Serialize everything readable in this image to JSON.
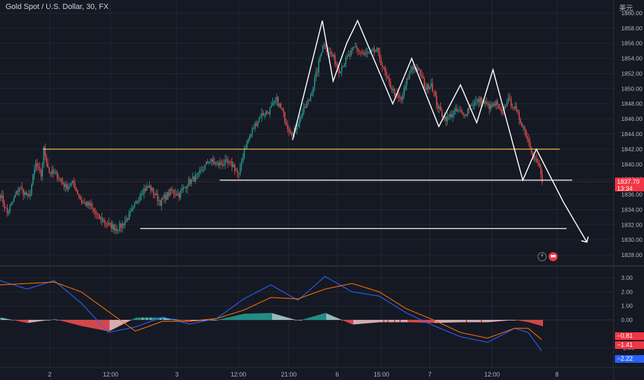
{
  "header": {
    "title": "Gold Spot / U.S. Dollar, 30, FX"
  },
  "currency_label": "美元",
  "icons": {
    "lightning": "lightning-icon",
    "flag": "us-flag-icon"
  },
  "colors": {
    "background": "#151924",
    "up": "#26a69a",
    "down": "#ef5350",
    "price_tag": "#f23645",
    "macd_line": "#2962ff",
    "signal_line": "#ff6d00",
    "support": "#ffffff",
    "resistance": "#f5c542"
  },
  "tags": {
    "price": "1837.70",
    "countdown": "13:34",
    "macd": "−0.81",
    "signal": "−1.41",
    "line": "−2.22"
  },
  "chart_data": [
    {
      "type": "candlestick",
      "interval": "30",
      "y_ticks": [
        "1828.00",
        "1830.00",
        "1832.00",
        "1834.00",
        "1836.00",
        "1838.00",
        "1840.00",
        "1842.00",
        "1844.00",
        "1846.00",
        "1848.00",
        "1850.00",
        "1852.00",
        "1854.00",
        "1856.00",
        "1858.00",
        "1860.00"
      ],
      "x_ticks": [
        "2",
        "12:00",
        "3",
        "12:00",
        "21:00",
        "6",
        "15:00",
        "7",
        "12:00",
        "8"
      ],
      "ylim": [
        1827,
        1861
      ],
      "waypoints": [
        [
          0,
          1836.0
        ],
        [
          5,
          1833.5
        ],
        [
          14,
          1837.0
        ],
        [
          21,
          1835.5
        ],
        [
          26,
          1840.0
        ],
        [
          30,
          1838.5
        ],
        [
          32,
          1842.0
        ],
        [
          36,
          1839.0
        ],
        [
          42,
          1838.5
        ],
        [
          48,
          1837.0
        ],
        [
          54,
          1837.5
        ],
        [
          60,
          1835.0
        ],
        [
          66,
          1834.5
        ],
        [
          72,
          1833.0
        ],
        [
          80,
          1832.0
        ],
        [
          86,
          1831.5
        ],
        [
          90,
          1832.0
        ],
        [
          98,
          1834.0
        ],
        [
          104,
          1836.5
        ],
        [
          110,
          1837.0
        ],
        [
          118,
          1835.0
        ],
        [
          126,
          1836.5
        ],
        [
          132,
          1836.0
        ],
        [
          138,
          1837.5
        ],
        [
          146,
          1838.5
        ],
        [
          154,
          1840.5
        ],
        [
          160,
          1840.0
        ],
        [
          166,
          1840.2
        ],
        [
          172,
          1839.8
        ],
        [
          176,
          1838.5
        ],
        [
          180,
          1842.0
        ],
        [
          186,
          1844.5
        ],
        [
          192,
          1846.5
        ],
        [
          198,
          1847.0
        ],
        [
          204,
          1848.5
        ],
        [
          208,
          1847.0
        ],
        [
          212,
          1845.0
        ],
        [
          216,
          1844.0
        ],
        [
          222,
          1846.5
        ],
        [
          228,
          1848.5
        ],
        [
          234,
          1852.5
        ],
        [
          238,
          1856.0
        ],
        [
          242,
          1855.0
        ],
        [
          246,
          1854.0
        ],
        [
          250,
          1852.5
        ],
        [
          256,
          1854.0
        ],
        [
          262,
          1855.5
        ],
        [
          268,
          1854.5
        ],
        [
          274,
          1854.8
        ],
        [
          278,
          1855.0
        ],
        [
          282,
          1853.0
        ],
        [
          286,
          1851.0
        ],
        [
          292,
          1849.0
        ],
        [
          296,
          1848.5
        ],
        [
          300,
          1851.0
        ],
        [
          304,
          1853.0
        ],
        [
          310,
          1852.0
        ],
        [
          314,
          1850.0
        ],
        [
          318,
          1850.8
        ],
        [
          322,
          1848.0
        ],
        [
          326,
          1846.5
        ],
        [
          330,
          1846.0
        ],
        [
          334,
          1846.8
        ],
        [
          338,
          1847.0
        ],
        [
          342,
          1846.5
        ],
        [
          348,
          1848.0
        ],
        [
          354,
          1848.5
        ],
        [
          358,
          1848.0
        ],
        [
          362,
          1847.5
        ],
        [
          366,
          1848.0
        ],
        [
          370,
          1846.5
        ],
        [
          374,
          1848.5
        ],
        [
          378,
          1848.0
        ],
        [
          382,
          1846.5
        ],
        [
          386,
          1845.0
        ],
        [
          390,
          1843.0
        ],
        [
          394,
          1841.0
        ],
        [
          398,
          1839.5
        ],
        [
          400,
          1837.7
        ]
      ],
      "macd": {
        "ylim": [
          -3.4,
          3.5
        ],
        "ticks": [
          "3.00",
          "2.00",
          "1.00",
          "0.00",
          "-2.00"
        ],
        "macd_waypoints": [
          [
            0,
            2.8
          ],
          [
            20,
            2.2
          ],
          [
            40,
            2.8
          ],
          [
            60,
            1.2
          ],
          [
            80,
            -0.9
          ],
          [
            100,
            -0.5
          ],
          [
            120,
            0.2
          ],
          [
            140,
            -0.3
          ],
          [
            160,
            0.1
          ],
          [
            180,
            1.5
          ],
          [
            200,
            2.5
          ],
          [
            220,
            1.4
          ],
          [
            240,
            3.1
          ],
          [
            260,
            2.0
          ],
          [
            280,
            1.7
          ],
          [
            300,
            0.5
          ],
          [
            320,
            -0.4
          ],
          [
            340,
            -1.2
          ],
          [
            360,
            -1.6
          ],
          [
            380,
            -0.6
          ],
          [
            390,
            -0.9
          ],
          [
            400,
            -2.22
          ]
        ],
        "signal_waypoints": [
          [
            0,
            2.5
          ],
          [
            20,
            2.6
          ],
          [
            40,
            2.7
          ],
          [
            60,
            2.0
          ],
          [
            80,
            0.6
          ],
          [
            100,
            -0.8
          ],
          [
            120,
            -0.1
          ],
          [
            140,
            -0.1
          ],
          [
            160,
            0.1
          ],
          [
            180,
            0.7
          ],
          [
            200,
            1.6
          ],
          [
            220,
            1.5
          ],
          [
            240,
            2.2
          ],
          [
            260,
            2.6
          ],
          [
            280,
            2.0
          ],
          [
            300,
            0.8
          ],
          [
            320,
            0.0
          ],
          [
            340,
            -0.9
          ],
          [
            360,
            -1.3
          ],
          [
            380,
            -0.6
          ],
          [
            390,
            -0.6
          ],
          [
            400,
            -1.41
          ]
        ]
      },
      "annotations": {
        "resistance_level": 1842.0,
        "support_level": 1837.9,
        "lower_support_level": 1831.5,
        "zigzag": [
          [
            216,
            1843.2
          ],
          [
            238,
            1859.0
          ],
          [
            246,
            1851.0
          ],
          [
            256,
            1856.0
          ],
          [
            264,
            1859.0
          ],
          [
            290,
            1848.0
          ],
          [
            304,
            1854.0
          ],
          [
            324,
            1845.0
          ],
          [
            340,
            1850.5
          ],
          [
            352,
            1845.5
          ],
          [
            364,
            1852.5
          ],
          [
            386,
            1837.9
          ],
          [
            396,
            1842.0
          ],
          [
            416,
            1835.0
          ]
        ]
      }
    }
  ]
}
